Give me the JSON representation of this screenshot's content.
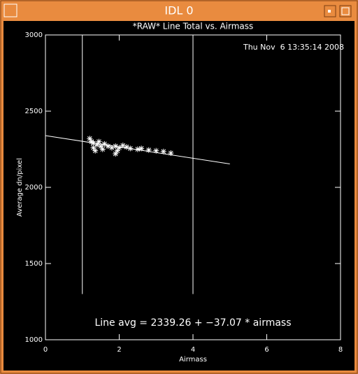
{
  "window": {
    "title": "IDL 0"
  },
  "chart_data": {
    "type": "scatter",
    "title": "*RAW* Line Total vs. Airmass",
    "subtitle": "Thu Nov  6 13:35:14 2008",
    "x_label": "Airmass",
    "y_label": "Average dn/pixel",
    "annotation": "Line avg = 2339.26 + −37.07 * airmass",
    "xlim": [
      0,
      8
    ],
    "xticks": [
      0,
      2,
      4,
      6,
      8
    ],
    "ylim": [
      1000,
      3000
    ],
    "yticks": [
      1000,
      1500,
      2000,
      2500,
      3000
    ],
    "series": [
      {
        "type": "scatter",
        "color": "#ffffff",
        "x": [
          1.2,
          1.25,
          1.3,
          1.3,
          1.35,
          1.4,
          1.45,
          1.5,
          1.55,
          1.6,
          1.7,
          1.8,
          1.9,
          2.0,
          2.1,
          1.9,
          1.95,
          2.2,
          2.3,
          2.5,
          2.6,
          2.8,
          3.0,
          3.2,
          3.4
        ],
        "values": [
          2320,
          2300,
          2290,
          2260,
          2240,
          2280,
          2300,
          2270,
          2250,
          2285,
          2270,
          2260,
          2270,
          2260,
          2275,
          2220,
          2240,
          2265,
          2255,
          2250,
          2255,
          2245,
          2240,
          2235,
          2225
        ]
      },
      {
        "type": "line",
        "color": "#ffffff",
        "x": [
          0,
          5
        ],
        "values": [
          2339.26,
          2153.91
        ]
      },
      {
        "type": "line",
        "color": "#ffffff",
        "x": [
          1,
          1
        ],
        "values": [
          1300,
          3000
        ]
      },
      {
        "type": "line",
        "color": "#ffffff",
        "x": [
          4,
          4
        ],
        "values": [
          1300,
          3000
        ]
      }
    ]
  }
}
